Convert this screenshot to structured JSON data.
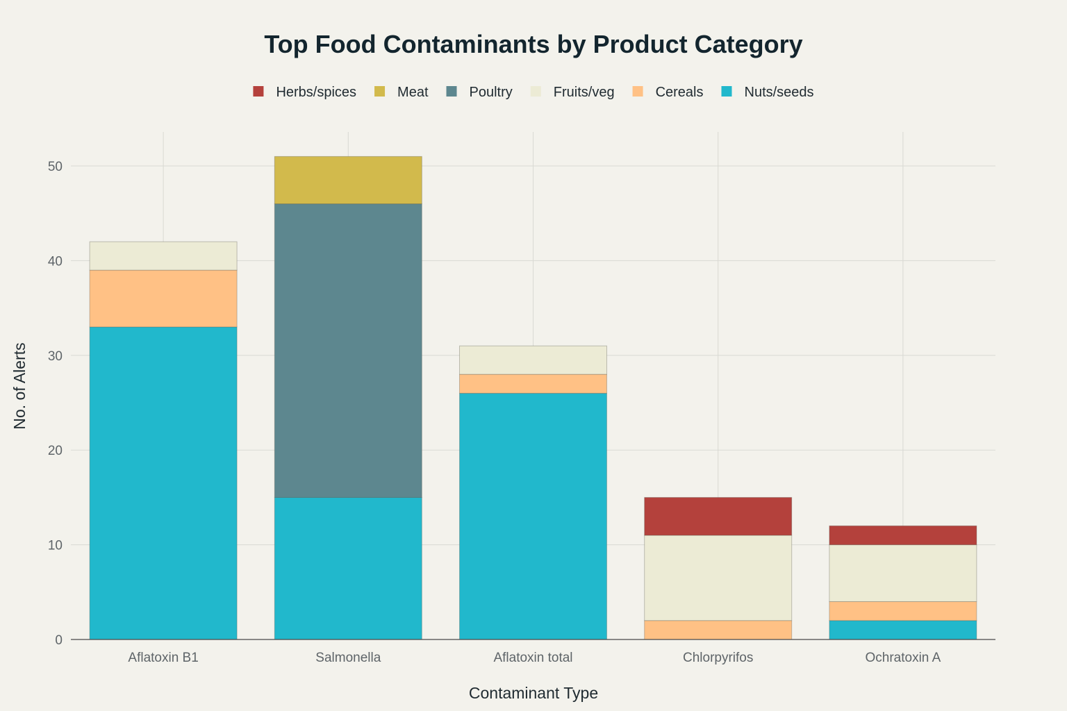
{
  "chart_data": {
    "type": "bar",
    "stacked": true,
    "title": "Top Food Contaminants by Product Category",
    "xlabel": "Contaminant Type",
    "ylabel": "No. of Alerts",
    "ylim": [
      0,
      53
    ],
    "yticks": [
      0,
      10,
      20,
      30,
      40,
      50
    ],
    "grid": true,
    "legend_position": "top",
    "categories": [
      "Aflatoxin B1",
      "Salmonella",
      "Aflatoxin total",
      "Chlorpyrifos",
      "Ochratoxin A"
    ],
    "series": [
      {
        "name": "Nuts/seeds",
        "color": "#21b8cc",
        "values": [
          33,
          15,
          26,
          0,
          2
        ]
      },
      {
        "name": "Cereals",
        "color": "#ffc185",
        "values": [
          6,
          0,
          2,
          2,
          2
        ]
      },
      {
        "name": "Fruits/veg",
        "color": "#ecebd5",
        "values": [
          3,
          0,
          3,
          9,
          6
        ]
      },
      {
        "name": "Poultry",
        "color": "#5d878f",
        "values": [
          0,
          31,
          0,
          0,
          0
        ]
      },
      {
        "name": "Meat",
        "color": "#d2ba4c",
        "values": [
          0,
          5,
          0,
          0,
          0
        ]
      },
      {
        "name": "Herbs/spices",
        "color": "#b4413c",
        "values": [
          0,
          0,
          0,
          4,
          2
        ]
      }
    ],
    "legend_order": [
      "Herbs/spices",
      "Meat",
      "Poultry",
      "Fruits/veg",
      "Cereals",
      "Nuts/seeds"
    ]
  }
}
